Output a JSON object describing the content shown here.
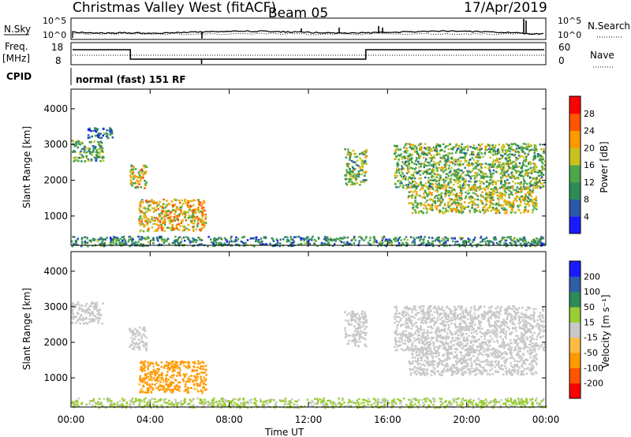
{
  "header": {
    "title": "Christmas Valley West (fitACF)",
    "beam": "Beam 05",
    "date": "17/Apr/2019"
  },
  "top_panels": {
    "nsky_label": "N.Sky",
    "nsearch_label": "N.Search",
    "nsky_ticks": [
      "10^5",
      "10^0"
    ],
    "nsearch_ticks": [
      "10^5",
      "10^0"
    ],
    "freq_label_1": "Freq.",
    "freq_label_2": "[MHz]",
    "freq_ticks": [
      "18",
      "8"
    ],
    "nave_label": "Nave",
    "nave_ticks": [
      "60",
      "0"
    ],
    "cpid_label": "CPID",
    "cpid_text": "normal (fast) 151 RF"
  },
  "colors": {
    "power_scale": [
      "#1a1aff",
      "#2a5aa8",
      "#2e8b57",
      "#4aa84a",
      "#c9c21e",
      "#ff9900",
      "#ff5500",
      "#ff0000"
    ],
    "velocity_scale": [
      "#ff0000",
      "#ff5500",
      "#ff9900",
      "#ffbb44",
      "#c8c8c8",
      "#9acd32",
      "#2e8b57",
      "#2e5fa8",
      "#1a1aff"
    ]
  },
  "chart_data": [
    {
      "type": "heatmap",
      "name": "power",
      "ylabel": "Slant Range [km]",
      "yticks": [
        "1000",
        "2000",
        "3000",
        "4000"
      ],
      "ylim": [
        180,
        4550
      ],
      "xticks": [
        "00:00",
        "04:00",
        "08:00",
        "12:00",
        "16:00",
        "20:00",
        "00:00"
      ],
      "xlim_hours": [
        0,
        24
      ],
      "colorbar_label": "Power [dB]",
      "colorbar_ticks": [
        "4",
        "8",
        "12",
        "16",
        "20",
        "24",
        "28"
      ],
      "clim": [
        0,
        32
      ],
      "echo_regions": [
        {
          "t0": 0.0,
          "t1": 1.6,
          "r0": 2550,
          "r1": 3150,
          "power": 12
        },
        {
          "t0": 0.8,
          "t1": 2.1,
          "r0": 3200,
          "r1": 3500,
          "power": 6
        },
        {
          "t0": 2.9,
          "t1": 3.8,
          "r0": 1800,
          "r1": 2450,
          "power": 18
        },
        {
          "t0": 3.4,
          "t1": 6.8,
          "r0": 600,
          "r1": 1500,
          "power": 20
        },
        {
          "t0": 13.8,
          "t1": 14.9,
          "r0": 1900,
          "r1": 2900,
          "power": 14
        },
        {
          "t0": 16.3,
          "t1": 23.9,
          "r0": 1800,
          "r1": 3050,
          "power": 14
        },
        {
          "t0": 17.0,
          "t1": 23.5,
          "r0": 1100,
          "r1": 1850,
          "power": 17
        },
        {
          "t0": 0.0,
          "t1": 24.0,
          "r0": 180,
          "r1": 450,
          "power": 10
        }
      ]
    },
    {
      "type": "heatmap",
      "name": "velocity",
      "ylabel": "Slant Range [km]",
      "yticks": [
        "1000",
        "2000",
        "3000",
        "4000"
      ],
      "ylim": [
        180,
        4550
      ],
      "xticks": [
        "00:00",
        "04:00",
        "08:00",
        "12:00",
        "16:00",
        "20:00",
        "00:00"
      ],
      "xlim_hours": [
        0,
        24
      ],
      "xlabel": "Time UT",
      "colorbar_label": "Velocity [m s⁻¹]",
      "colorbar_ticks": [
        "-200",
        "-100",
        "-50",
        "-15",
        "15",
        "50",
        "100",
        "200"
      ],
      "echo_regions": [
        {
          "t0": 0.0,
          "t1": 1.6,
          "r0": 2550,
          "r1": 3150,
          "velocity": 0
        },
        {
          "t0": 2.9,
          "t1": 3.8,
          "r0": 1800,
          "r1": 2450,
          "velocity": 0
        },
        {
          "t0": 3.4,
          "t1": 6.8,
          "r0": 600,
          "r1": 1500,
          "velocity": -60
        },
        {
          "t0": 13.8,
          "t1": 14.9,
          "r0": 1900,
          "r1": 2900,
          "velocity": 0
        },
        {
          "t0": 16.3,
          "t1": 23.9,
          "r0": 1800,
          "r1": 3050,
          "velocity": 0
        },
        {
          "t0": 17.0,
          "t1": 23.5,
          "r0": 1100,
          "r1": 1850,
          "velocity": 0
        },
        {
          "t0": 0.0,
          "t1": 24.0,
          "r0": 180,
          "r1": 450,
          "velocity": 20
        }
      ]
    }
  ]
}
